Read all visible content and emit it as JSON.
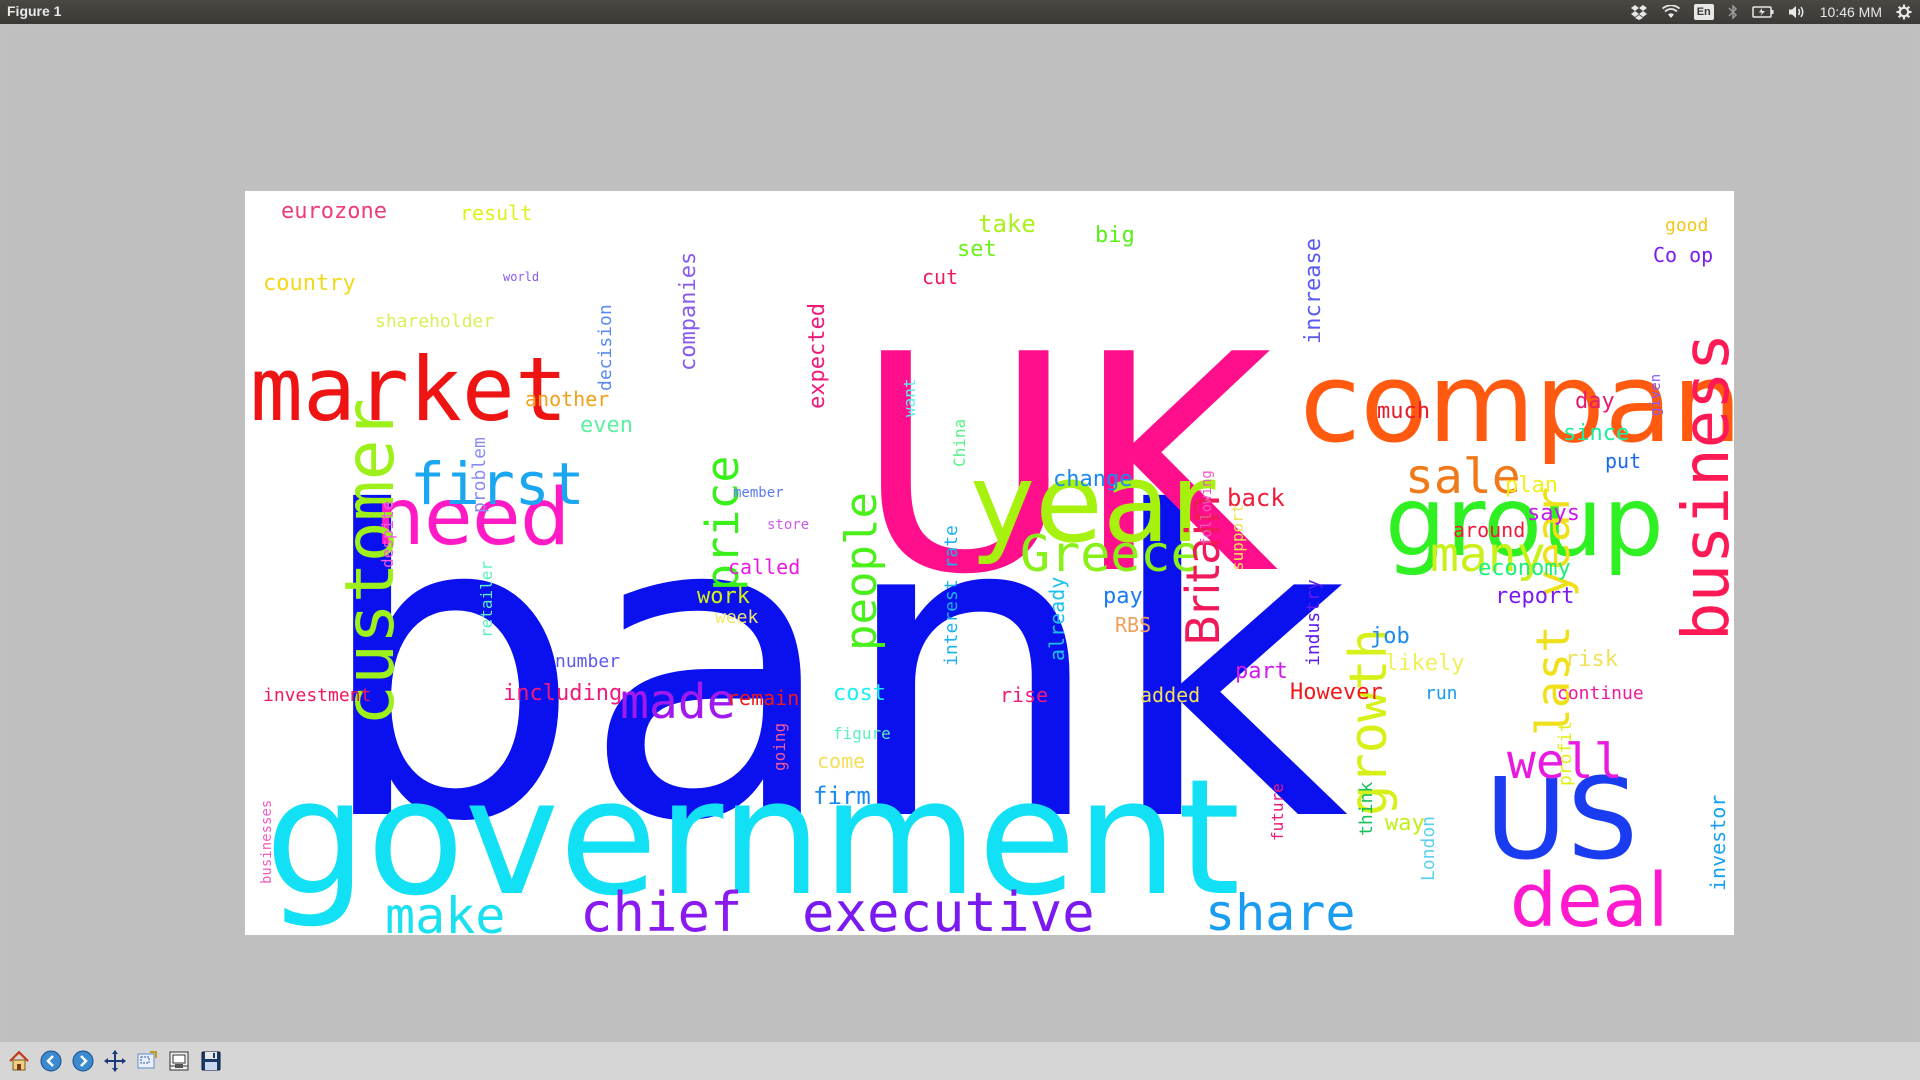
{
  "window": {
    "title": "Figure 1"
  },
  "tray": {
    "keyboard_layout": "En",
    "clock": "10:46 MM"
  },
  "toolbar": {
    "buttons": [
      {
        "name": "home-button",
        "icon": "home-icon"
      },
      {
        "name": "back-button",
        "icon": "arrow-left-icon"
      },
      {
        "name": "forward-button",
        "icon": "arrow-right-icon"
      },
      {
        "name": "pan-button",
        "icon": "move-icon"
      },
      {
        "name": "zoom-button",
        "icon": "zoom-rect-icon"
      },
      {
        "name": "subplots-button",
        "icon": "subplots-icon"
      },
      {
        "name": "save-button",
        "icon": "save-icon"
      }
    ]
  },
  "wordcloud": {
    "words": [
      {
        "text": "bank",
        "color": "#0a10ee"
      },
      {
        "text": "UK",
        "color": "#ff0f8c"
      },
      {
        "text": "company",
        "color": "#ff5a10"
      },
      {
        "text": "government",
        "color": "#12e0f4"
      },
      {
        "text": "year",
        "color": "#a6f10e"
      },
      {
        "text": "market",
        "color": "#ee1414"
      },
      {
        "text": "group",
        "color": "#2ef022"
      },
      {
        "text": "need",
        "color": "#ff1ac6"
      },
      {
        "text": "customer",
        "color": "#9ef01a"
      },
      {
        "text": "business",
        "color": "#ff1a55"
      },
      {
        "text": "first",
        "color": "#1aa6f0"
      },
      {
        "text": "deal",
        "color": "#ff1ad0"
      },
      {
        "text": "US",
        "color": "#1a3cf0"
      },
      {
        "text": "chief",
        "color": "#8a1af0"
      },
      {
        "text": "executive",
        "color": "#7a1af0"
      },
      {
        "text": "share",
        "color": "#1a9cf0"
      },
      {
        "text": "make",
        "color": "#1ae0f0"
      },
      {
        "text": "Greece",
        "color": "#8af01a"
      },
      {
        "text": "many",
        "color": "#c8f01a"
      },
      {
        "text": "sale",
        "color": "#f07a1a"
      },
      {
        "text": "price",
        "color": "#3af01a"
      },
      {
        "text": "people",
        "color": "#4af01a"
      },
      {
        "text": "made",
        "color": "#a01af0"
      },
      {
        "text": "Britain",
        "color": "#f01a5a"
      },
      {
        "text": "last year",
        "color": "#f0e01a"
      },
      {
        "text": "growth",
        "color": "#d8f01a"
      },
      {
        "text": "well",
        "color": "#e81ae0"
      },
      {
        "text": "eurozone",
        "color": "#f03a7a"
      },
      {
        "text": "result",
        "color": "#e0f01a"
      },
      {
        "text": "take",
        "color": "#aaf01a"
      },
      {
        "text": "set",
        "color": "#6af01a"
      },
      {
        "text": "big",
        "color": "#5af01a"
      },
      {
        "text": "good",
        "color": "#f0c81a"
      },
      {
        "text": "Co op",
        "color": "#7a1af0"
      },
      {
        "text": "country",
        "color": "#f0d81a"
      },
      {
        "text": "cut",
        "color": "#f01a5a"
      },
      {
        "text": "shareholder",
        "color": "#d8f05a"
      },
      {
        "text": "companies",
        "color": "#8a5af0"
      },
      {
        "text": "expected",
        "color": "#f01a7a"
      },
      {
        "text": "decision",
        "color": "#5a8af0"
      },
      {
        "text": "increase",
        "color": "#5a5af0"
      },
      {
        "text": "another",
        "color": "#f0a01a"
      },
      {
        "text": "even",
        "color": "#5af0a0"
      },
      {
        "text": "much",
        "color": "#e81a2a"
      },
      {
        "text": "day",
        "color": "#e81a6a"
      },
      {
        "text": "since",
        "color": "#1af0a0"
      },
      {
        "text": "put",
        "color": "#1a6af0"
      },
      {
        "text": "plan",
        "color": "#f0f01a"
      },
      {
        "text": "says",
        "color": "#c81af0"
      },
      {
        "text": "back",
        "color": "#f01a3a"
      },
      {
        "text": "change",
        "color": "#1a8af0"
      },
      {
        "text": "around",
        "color": "#f01a3a"
      },
      {
        "text": "economy",
        "color": "#1af07a"
      },
      {
        "text": "report",
        "color": "#7a1af0"
      },
      {
        "text": "interest rate",
        "color": "#1ab0f0"
      },
      {
        "text": "already",
        "color": "#1ac0f0"
      },
      {
        "text": "pay",
        "color": "#1a7af0"
      },
      {
        "text": "called",
        "color": "#e81ae0"
      },
      {
        "text": "work",
        "color": "#d0f01a"
      },
      {
        "text": "week",
        "color": "#f0e86a"
      },
      {
        "text": "problem",
        "color": "#8a8af0"
      },
      {
        "text": "retailer",
        "color": "#5af0c0"
      },
      {
        "text": "despite",
        "color": "#f05ae0"
      },
      {
        "text": "industry",
        "color": "#5a1af0"
      },
      {
        "text": "RBS",
        "color": "#f0a05a"
      },
      {
        "text": "job",
        "color": "#1a8af0"
      },
      {
        "text": "likely",
        "color": "#f0f05a"
      },
      {
        "text": "risk",
        "color": "#f0e05a"
      },
      {
        "text": "part",
        "color": "#d01af0"
      },
      {
        "text": "However",
        "color": "#f01a1a"
      },
      {
        "text": "number",
        "color": "#5a5af0"
      },
      {
        "text": "investment",
        "color": "#f01a5a"
      },
      {
        "text": "including",
        "color": "#f01a7a"
      },
      {
        "text": "remain",
        "color": "#f01a1a"
      },
      {
        "text": "cost",
        "color": "#1af0f0"
      },
      {
        "text": "rise",
        "color": "#f01a7a"
      },
      {
        "text": "added",
        "color": "#f0e05a"
      },
      {
        "text": "run",
        "color": "#1a9af0"
      },
      {
        "text": "continue",
        "color": "#f01aa0"
      },
      {
        "text": "come",
        "color": "#f0e05a"
      },
      {
        "text": "firm",
        "color": "#1a8af0"
      },
      {
        "text": "figure",
        "color": "#5af0c0"
      },
      {
        "text": "going",
        "color": "#f05aa0"
      },
      {
        "text": "profit",
        "color": "#e0f01a"
      },
      {
        "text": "investor",
        "color": "#1aa0f0"
      },
      {
        "text": "think",
        "color": "#1ac05a"
      },
      {
        "text": "London",
        "color": "#5ad0f0"
      },
      {
        "text": "future",
        "color": "#f01a7a"
      },
      {
        "text": "way",
        "color": "#c0f01a"
      },
      {
        "text": "support",
        "color": "#f0e05a"
      },
      {
        "text": "following",
        "color": "#f05ac0"
      },
      {
        "text": "businesses",
        "color": "#f05ac0"
      },
      {
        "text": "want",
        "color": "#5af0f0"
      },
      {
        "text": "China",
        "color": "#5af08a"
      },
      {
        "text": "store",
        "color": "#d05af0"
      },
      {
        "text": "member",
        "color": "#5a7af0"
      },
      {
        "text": "world",
        "color": "#8a5af0"
      },
      {
        "text": "given",
        "color": "#8a5af0"
      }
    ]
  }
}
